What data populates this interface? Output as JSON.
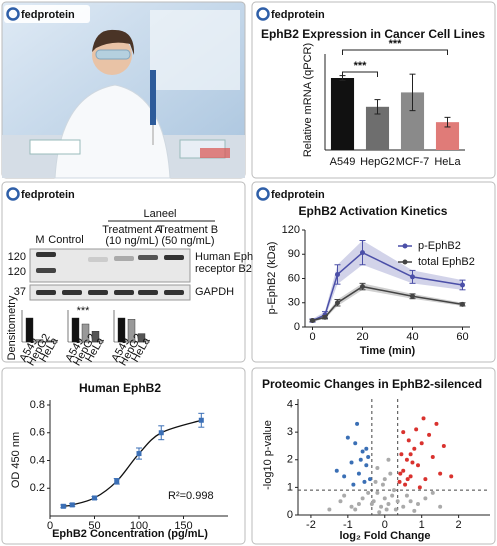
{
  "brand": "fedprotein",
  "blot": {
    "header": "Laneel",
    "marker_lane": "M",
    "control": "Control",
    "treatment_a": [
      "Treatment A",
      "(10 ng/mL)"
    ],
    "treatment_b": [
      "Treatment B",
      "(50 ng/mL)"
    ],
    "bands": [
      [
        "Human Eph",
        "receptor B2"
      ],
      [
        "GAPDH"
      ]
    ],
    "markers": [
      120,
      120,
      37
    ],
    "mini_charts": {
      "y_label": "Densitometry",
      "categories": [
        "A549",
        "HepG2",
        "HeLa"
      ],
      "annotation": "***",
      "charts": [
        {
          "values": [
            1.0,
            0.1,
            0.05
          ]
        },
        {
          "values": [
            1.0,
            0.75,
            0.45
          ]
        },
        {
          "values": [
            1.0,
            0.95,
            0.35
          ]
        }
      ]
    }
  },
  "chart_data": [
    {
      "type": "bar",
      "title": "EphB2 Expression in Cancer Cell Lines",
      "y_label": "Relative mRNA (qPCR)",
      "categories": [
        "A549",
        "HepG2",
        "MCF-7",
        "HeLa"
      ],
      "values": [
        1.5,
        0.9,
        1.2,
        0.58
      ],
      "errors": [
        0.05,
        0.15,
        0.38,
        0.1
      ],
      "colors": [
        "#111111",
        "#6e6e6e",
        "#8a8a8a",
        "#e07b78"
      ],
      "ylim": [
        0,
        2
      ],
      "annotations": [
        "***",
        "***"
      ]
    },
    {
      "type": "line",
      "title": "EphB2 Activation Kinetics",
      "x_label": "Time (min)",
      "y_label": "p-EphB2 (kDa)",
      "x": [
        0,
        5,
        10,
        20,
        40,
        60
      ],
      "series": [
        {
          "name": "p-EphB2",
          "color": "#4b4fa8",
          "values": [
            8,
            15,
            65,
            92,
            62,
            52
          ],
          "errors": [
            2,
            4,
            12,
            15,
            8,
            6
          ]
        },
        {
          "name": "total EphB2",
          "color": "#444444",
          "values": [
            8,
            12,
            30,
            50,
            38,
            28
          ],
          "errors": [
            1,
            2,
            4,
            4,
            3,
            2
          ]
        }
      ],
      "xlim": [
        -3,
        63
      ],
      "xticks": [
        0,
        20,
        40,
        60
      ],
      "ylim": [
        0,
        120
      ],
      "yticks": [
        0,
        30,
        60,
        90,
        120
      ]
    },
    {
      "type": "scatter",
      "title": "Human EphB2",
      "x_label": "EphB2 Concentration (pg/mL)",
      "y_label": "OD 450 nm",
      "x": [
        15,
        25,
        50,
        75,
        100,
        125,
        170
      ],
      "values": [
        0.07,
        0.08,
        0.13,
        0.25,
        0.45,
        0.6,
        0.69
      ],
      "errors": [
        0.01,
        0.01,
        0.01,
        0.02,
        0.04,
        0.05,
        0.05
      ],
      "color": "#3b6fb6",
      "annotation": "R²=0.998",
      "xlim": [
        0,
        200
      ],
      "xticks": [
        0,
        50,
        100,
        150
      ],
      "ylim": [
        0,
        0.8
      ],
      "yticks": [
        0.2,
        0.4,
        0.6,
        0.8
      ]
    },
    {
      "type": "volcano",
      "title": "Proteomic Changes in EphB2-silenced",
      "x_label": "log₂ Fold Change",
      "y_label": "-log10 p-value",
      "x": [
        0.4,
        0.5,
        0.6,
        0.7,
        0.8,
        0.9,
        1.0,
        1.1,
        1.2,
        0.45,
        0.55,
        0.65,
        0.75,
        0.85,
        1.3,
        1.5,
        1.6,
        0.95,
        1.05,
        1.4,
        0.5,
        0.7,
        1.8,
        0.42,
        0.62,
        -0.4,
        -0.5,
        -0.6,
        -0.7,
        -0.8,
        -0.9,
        -1.0,
        -0.45,
        -0.55,
        -0.65,
        -0.75,
        -1.1,
        -0.85,
        -0.5,
        -1.3,
        -0.3,
        -0.2,
        -0.1,
        0,
        0.1,
        0.2,
        0.3,
        -0.25,
        0.15,
        -0.05,
        0.25,
        -0.15,
        0.05,
        -0.35,
        0.35,
        -0.6,
        0.6,
        -0.9,
        0.9,
        -1.2,
        1.1,
        -0.45,
        0.5,
        -0.8,
        0.8,
        1.5,
        -1.5,
        0,
        0.1,
        -0.2,
        1.3,
        -1.1,
        0.7,
        -0.7
      ],
      "values": [
        1.2,
        1.6,
        2.0,
        1.4,
        2.4,
        1.8,
        2.6,
        1.3,
        2.9,
        2.2,
        1.1,
        2.7,
        1.9,
        3.1,
        2.1,
        1.5,
        2.5,
        1.0,
        3.5,
        3.3,
        3.0,
        2.2,
        1.4,
        1.5,
        1.3,
        1.3,
        1.8,
        2.3,
        1.5,
        2.6,
        1.9,
        2.8,
        2.1,
        1.2,
        2.0,
        3.3,
        1.4,
        1.1,
        2.4,
        1.6,
        0.5,
        0.8,
        0.3,
        0.6,
        0.4,
        0.7,
        0.2,
        1.2,
        1.5,
        1.1,
        0.9,
        0.1,
        0.2,
        0.4,
        0.5,
        0.6,
        0.7,
        0.3,
        0.4,
        0.5,
        0.6,
        0.8,
        0.3,
        0.2,
        0.15,
        0.3,
        0.2,
        1.3,
        2.0,
        1.7,
        0.8,
        0.7,
        0.5,
        0.4
      ],
      "cutoff_x": [
        -0.35,
        0.35
      ],
      "cutoff_y": 0.9,
      "colors": {
        "down": "#3a6fb5",
        "up": "#d9322e",
        "ns": "#aaaaaa"
      },
      "xlim": [
        -2.35,
        2.85
      ],
      "xticks": [
        -2,
        -1,
        0,
        1,
        2
      ],
      "ylim": [
        0,
        4.2
      ],
      "yticks": [
        0,
        1,
        2,
        3,
        4
      ]
    }
  ]
}
